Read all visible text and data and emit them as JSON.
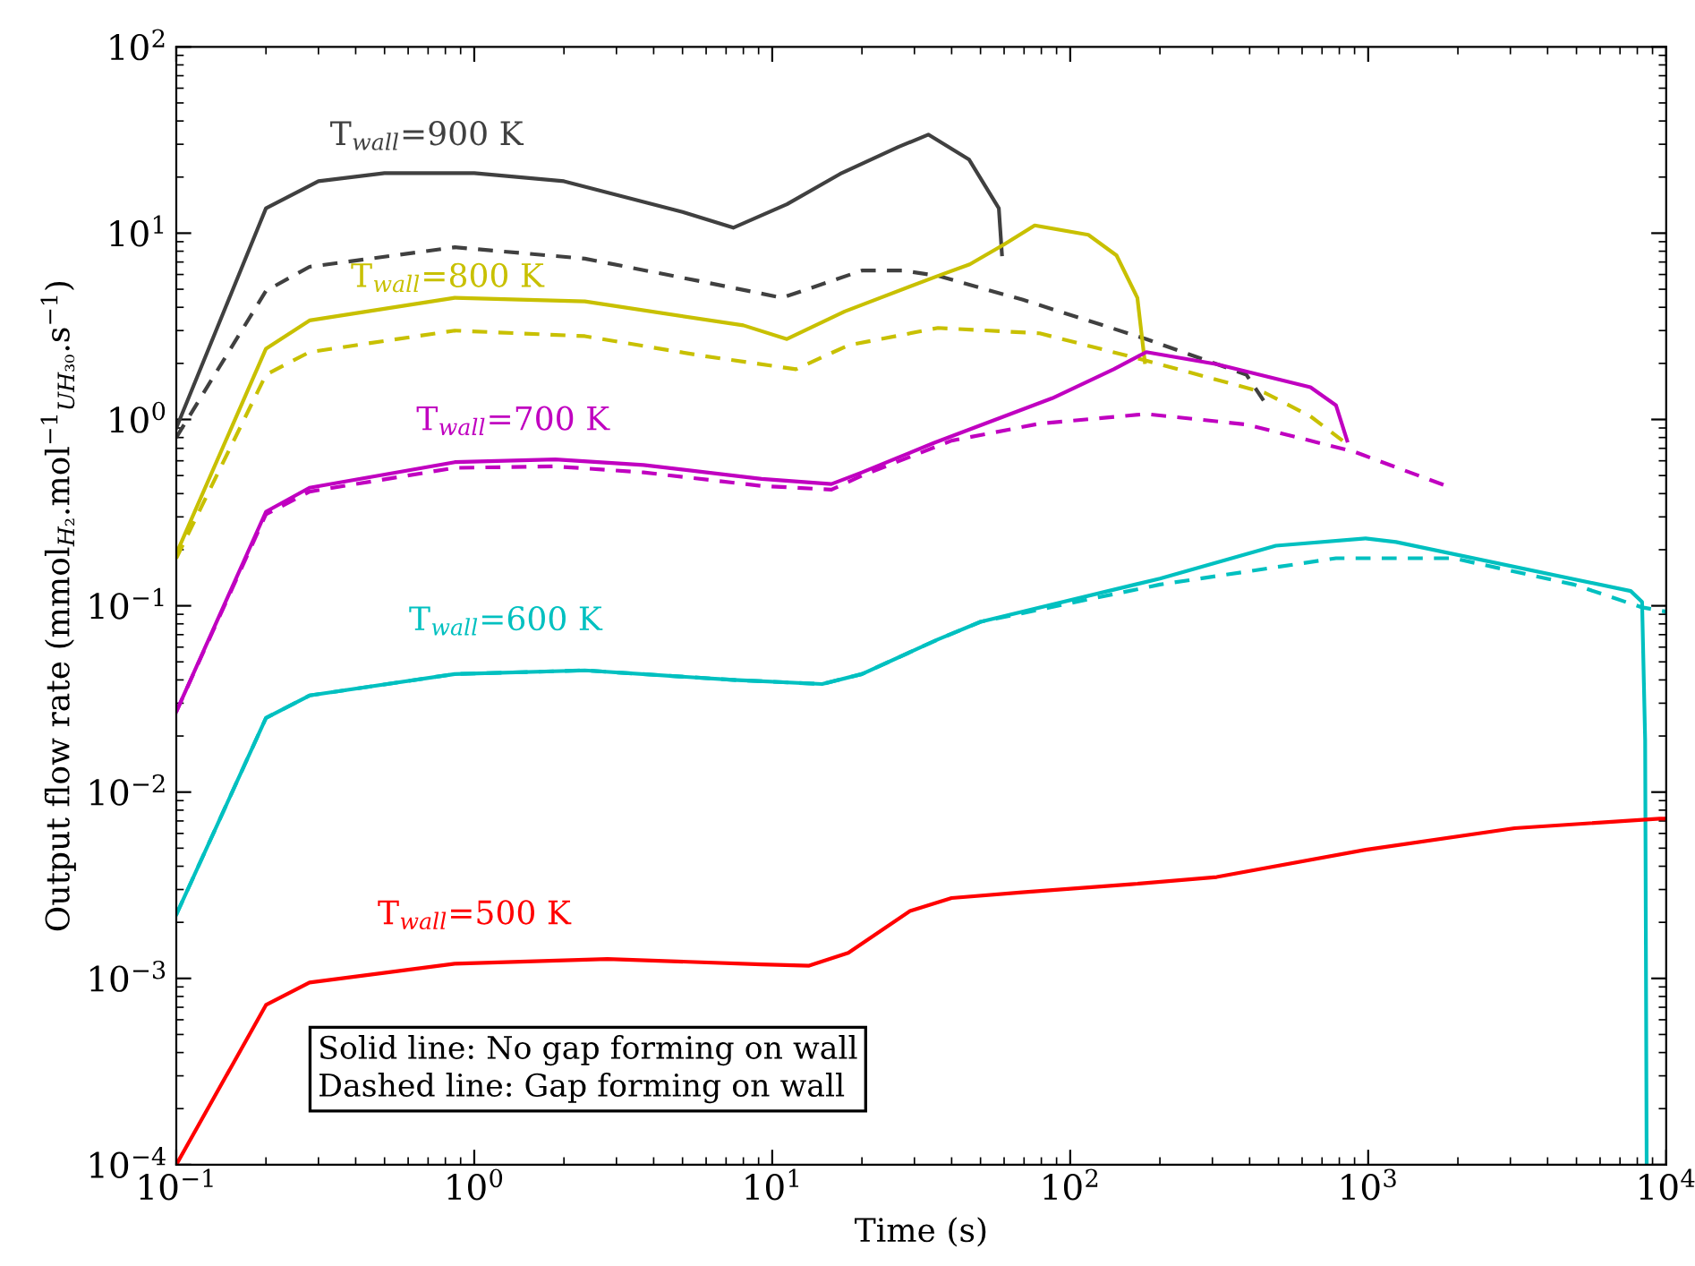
{
  "chart_data": {
    "type": "line",
    "xlabel": "Time (s)",
    "ylabel": "Output flow rate (mmol$_{H₂}$.mol$^{−1}$$_{UH₃₀}$.s$^{−1}$)",
    "log": "xy",
    "grid": false,
    "legend": false,
    "marker": "none",
    "xlim": [
      0.1,
      10000
    ],
    "ylim": [
      0.0001,
      100
    ],
    "xticks": [
      {
        "value": 0.1,
        "label": "10$^{−1}$"
      },
      {
        "value": 1,
        "label": "10$^{0}$"
      },
      {
        "value": 10,
        "label": "10$^{1}$"
      },
      {
        "value": 100,
        "label": "10$^{2}$"
      },
      {
        "value": 1000,
        "label": "10$^{3}$"
      },
      {
        "value": 10000,
        "label": "10$^{4}$"
      }
    ],
    "yticks": [
      {
        "value": 0.0001,
        "label": "10$^{−4}$"
      },
      {
        "value": 0.001,
        "label": "10$^{−3}$"
      },
      {
        "value": 0.01,
        "label": "10$^{−2}$"
      },
      {
        "value": 0.1,
        "label": "10$^{−1}$"
      },
      {
        "value": 1,
        "label": "10$^{0}$"
      },
      {
        "value": 10,
        "label": "10$^{1}$"
      },
      {
        "value": 100,
        "label": "10$^{2}$"
      }
    ],
    "series": [
      {
        "color": "#404040",
        "line_style": "solid",
        "x": [
          0.1,
          0.2,
          0.3,
          0.5,
          1,
          2,
          5,
          7.4,
          11.2,
          16.9,
          26.5,
          33.4,
          45.8,
          57.6,
          59
        ],
        "values": [
          0.9,
          13.6,
          19,
          21,
          21,
          19,
          13,
          10.7,
          14.3,
          20.8,
          29,
          33.8,
          24.8,
          13.6,
          7.7
        ]
      },
      {
        "color": "#404040",
        "line_style": "dashed",
        "x": [
          0.1,
          0.2,
          0.28,
          0.86,
          2.35,
          5.8,
          10.8,
          20,
          27.5,
          36,
          69,
          180,
          390,
          460
        ],
        "values": [
          0.8,
          4.9,
          6.6,
          8.4,
          7.3,
          5.5,
          4.5,
          6.3,
          6.3,
          5.9,
          4.4,
          2.7,
          1.74,
          1.17
        ]
      },
      {
        "color": "#c8c000",
        "line_style": "solid",
        "x": [
          0.1,
          0.2,
          0.28,
          0.86,
          2.35,
          8,
          11.2,
          17.5,
          36,
          46,
          60,
          76,
          115,
          143,
          168,
          178
        ],
        "values": [
          0.19,
          2.4,
          3.4,
          4.5,
          4.3,
          3.2,
          2.7,
          3.8,
          5.9,
          6.8,
          8.7,
          11,
          9.8,
          7.6,
          4.5,
          2.03
        ]
      },
      {
        "color": "#c8c000",
        "line_style": "dashed",
        "x": [
          0.1,
          0.2,
          0.28,
          0.86,
          2.35,
          5.8,
          12,
          18,
          36,
          79,
          180,
          450,
          640,
          820
        ],
        "values": [
          0.18,
          1.74,
          2.3,
          3.0,
          2.8,
          2.2,
          1.86,
          2.5,
          3.1,
          2.9,
          2.07,
          1.39,
          1.04,
          0.77
        ]
      },
      {
        "color": "#c000c0",
        "line_style": "solid",
        "x": [
          0.1,
          0.2,
          0.28,
          0.86,
          1.87,
          3.7,
          9.2,
          15.8,
          20,
          35,
          87,
          140,
          180,
          310,
          640,
          780,
          850
        ],
        "values": [
          0.027,
          0.32,
          0.43,
          0.59,
          0.61,
          0.57,
          0.48,
          0.45,
          0.52,
          0.75,
          1.3,
          1.86,
          2.3,
          1.98,
          1.49,
          1.19,
          0.77
        ]
      },
      {
        "color": "#c000c0",
        "line_style": "dashed",
        "x": [
          0.1,
          0.2,
          0.28,
          0.86,
          1.87,
          3.7,
          9.2,
          15.8,
          20,
          40,
          79,
          180,
          390,
          900,
          1900
        ],
        "values": [
          0.027,
          0.31,
          0.41,
          0.55,
          0.56,
          0.52,
          0.44,
          0.42,
          0.5,
          0.77,
          0.95,
          1.07,
          0.94,
          0.67,
          0.43
        ]
      },
      {
        "color": "#00c0c0",
        "line_style": "solid",
        "x": [
          0.1,
          0.2,
          0.28,
          0.86,
          2.35,
          7.4,
          14.7,
          20,
          36,
          50,
          200,
          490,
          980,
          1240,
          7600,
          8300,
          8500,
          8600
        ],
        "values": [
          0.0022,
          0.025,
          0.033,
          0.043,
          0.045,
          0.04,
          0.038,
          0.043,
          0.066,
          0.082,
          0.14,
          0.21,
          0.23,
          0.22,
          0.12,
          0.105,
          0.019,
          0.0001
        ]
      },
      {
        "color": "#00c0c0",
        "line_style": "dashed",
        "x": [
          0.1,
          0.2,
          0.28,
          0.86,
          2.35,
          7.4,
          14.7,
          20,
          36,
          50,
          200,
          780,
          1930,
          4900,
          8300,
          10000
        ],
        "values": [
          0.0022,
          0.025,
          0.033,
          0.043,
          0.045,
          0.04,
          0.038,
          0.043,
          0.066,
          0.082,
          0.13,
          0.18,
          0.18,
          0.13,
          0.098,
          0.093
        ]
      },
      {
        "color": "#ff0000",
        "line_style": "solid",
        "x": [
          0.1,
          0.2,
          0.28,
          0.86,
          2.8,
          9.2,
          13.3,
          18,
          29,
          40,
          69,
          160,
          310,
          980,
          3100,
          9500,
          10000
        ],
        "values": [
          0.0001,
          0.00072,
          0.00095,
          0.0012,
          0.00127,
          0.00119,
          0.00117,
          0.00137,
          0.0023,
          0.0027,
          0.0029,
          0.0032,
          0.0035,
          0.0049,
          0.0064,
          0.0072,
          0.0072
        ]
      }
    ],
    "annotations": [
      "T$_{wall}$=900 K",
      "T$_{wall}$=800 K",
      "T$_{wall}$=700 K",
      "T$_{wall}$=600 K",
      "T$_{wall}$=500 K",
      "Solid line: No gap forming on wall",
      "Dashed line: Gap forming on wall"
    ]
  }
}
